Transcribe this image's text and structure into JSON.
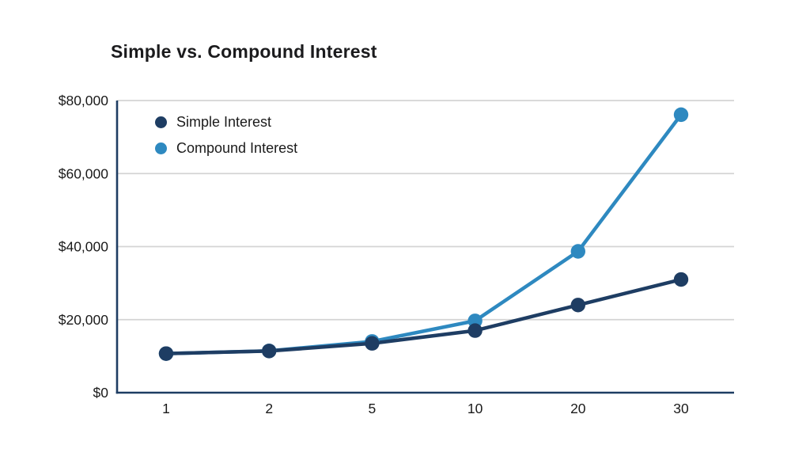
{
  "chart_data": {
    "type": "line",
    "title": "Simple vs. Compound Interest",
    "xlabel": "",
    "ylabel": "",
    "x_categories": [
      "1",
      "2",
      "5",
      "10",
      "20",
      "30"
    ],
    "series": [
      {
        "name": "Simple Interest",
        "color": "#1e3d63",
        "values": [
          10700,
          11400,
          13500,
          17000,
          24000,
          31000
        ]
      },
      {
        "name": "Compound Interest",
        "color": "#2e89c0",
        "values": [
          10700,
          11449,
          14026,
          19672,
          38697,
          76123
        ]
      }
    ],
    "y_ticks": [
      {
        "value": 0,
        "label": "$0"
      },
      {
        "value": 20000,
        "label": "$20,000"
      },
      {
        "value": 40000,
        "label": "$40,000"
      },
      {
        "value": 60000,
        "label": "$60,000"
      },
      {
        "value": 80000,
        "label": "$80,000"
      }
    ],
    "ylim": [
      0,
      80000
    ],
    "grid": "horizontal",
    "legend_position": "top-left-inside",
    "axis_color": "#1e3d63",
    "grid_color": "#d4d4d4",
    "tick_color": "#1a1a1a"
  }
}
